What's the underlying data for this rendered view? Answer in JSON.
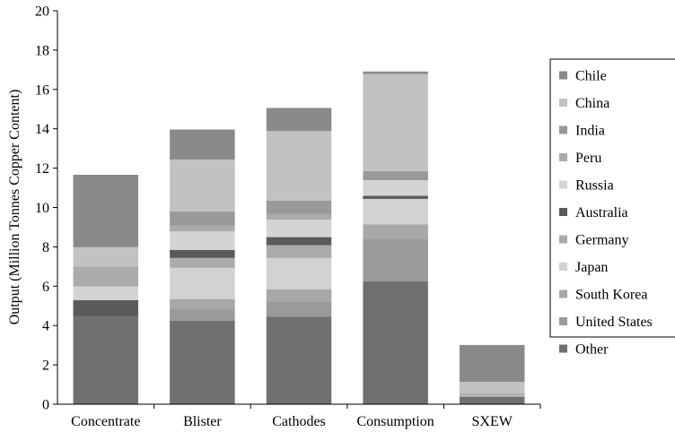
{
  "chart_data": {
    "type": "bar",
    "stacked": true,
    "title": "",
    "xlabel": "",
    "ylabel": "Output (Million Tonnes Copper Content)",
    "ylim": [
      0,
      20
    ],
    "yticks": [
      0,
      2,
      4,
      6,
      8,
      10,
      12,
      14,
      16,
      18,
      20
    ],
    "grid": false,
    "legend_position": "right",
    "categories": [
      "Concentrate",
      "Blister",
      "Cathodes",
      "Consumption",
      "SXEW"
    ],
    "series": [
      {
        "name": "Other",
        "color": "#707070",
        "values": [
          4.5,
          4.25,
          4.45,
          6.25,
          0.4
        ]
      },
      {
        "name": "United States",
        "color": "#9a9a9a",
        "values": [
          0.0,
          0.6,
          0.75,
          2.15,
          0.0
        ]
      },
      {
        "name": "South Korea",
        "color": "#a8a8a8",
        "values": [
          0.0,
          0.5,
          0.65,
          0.75,
          0.0
        ]
      },
      {
        "name": "Japan",
        "color": "#d2d2d2",
        "values": [
          0.0,
          1.6,
          1.6,
          1.3,
          0.0
        ]
      },
      {
        "name": "Germany",
        "color": "#ababab",
        "values": [
          0.0,
          0.5,
          0.65,
          0.0,
          0.0
        ]
      },
      {
        "name": "Australia",
        "color": "#5a5a5a",
        "values": [
          0.8,
          0.4,
          0.4,
          0.15,
          0.0
        ]
      },
      {
        "name": "Russia",
        "color": "#d4d4d4",
        "values": [
          0.7,
          0.95,
          0.9,
          0.8,
          0.05
        ]
      },
      {
        "name": "Peru",
        "color": "#ababab",
        "values": [
          1.0,
          0.3,
          0.3,
          0.0,
          0.1
        ]
      },
      {
        "name": "India",
        "color": "#999999",
        "values": [
          0.0,
          0.7,
          0.65,
          0.45,
          0.0
        ]
      },
      {
        "name": "China",
        "color": "#c2c2c2",
        "values": [
          1.0,
          2.65,
          3.55,
          4.95,
          0.6
        ]
      },
      {
        "name": "Chile",
        "color": "#8a8a8a",
        "values": [
          3.65,
          1.5,
          1.15,
          0.1,
          1.85
        ]
      }
    ]
  }
}
